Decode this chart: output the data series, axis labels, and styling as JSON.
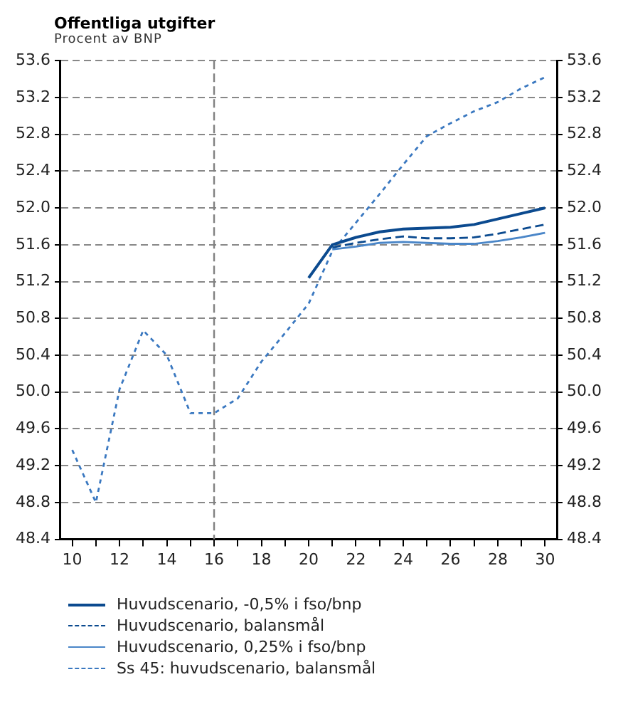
{
  "chart_data": {
    "type": "line",
    "title": "Offentliga utgifter",
    "ylabel": "Procent av BNP",
    "x": [
      10,
      11,
      12,
      13,
      14,
      15,
      16,
      17,
      18,
      19,
      20,
      21,
      22,
      23,
      24,
      25,
      26,
      27,
      28,
      29,
      30
    ],
    "series": [
      {
        "name": "Huvudscenario, -0,5% i fso/bnp",
        "color": "#0b4a8f",
        "line_style": "solid",
        "values": [
          null,
          null,
          null,
          null,
          null,
          null,
          null,
          null,
          null,
          null,
          51.24,
          51.6,
          51.68,
          51.74,
          51.77,
          51.78,
          51.79,
          51.82,
          51.88,
          51.94,
          52.0
        ]
      },
      {
        "name": "Huvudscenario, balansmål",
        "color": "#0b4a8f",
        "line_style": "dashed",
        "values": [
          null,
          null,
          null,
          null,
          null,
          null,
          null,
          null,
          null,
          null,
          null,
          51.57,
          51.62,
          51.66,
          51.69,
          51.67,
          51.67,
          51.68,
          51.72,
          51.77,
          51.82
        ]
      },
      {
        "name": "Huvudscenario, 0,25% i fso/bnp",
        "color": "#4a86c8",
        "line_style": "solid",
        "values": [
          null,
          null,
          null,
          null,
          null,
          null,
          null,
          null,
          null,
          null,
          null,
          51.55,
          51.58,
          51.62,
          51.63,
          51.62,
          51.61,
          51.61,
          51.64,
          51.68,
          51.73
        ]
      },
      {
        "name": "Ss 45: huvudscenario, balansmål",
        "color": "#3a78c0",
        "line_style": "dotted",
        "values": [
          49.37,
          48.8,
          50.03,
          50.67,
          50.4,
          49.77,
          49.77,
          49.93,
          50.33,
          50.64,
          50.96,
          51.53,
          51.84,
          52.15,
          52.47,
          52.78,
          52.92,
          53.05,
          53.15,
          53.3,
          53.42
        ]
      }
    ],
    "xlim": [
      9.5,
      30.5
    ],
    "xticks": [
      {
        "value": 10,
        "label": "10"
      },
      {
        "value": 11,
        "label": null
      },
      {
        "value": 12,
        "label": "12"
      },
      {
        "value": 13,
        "label": null
      },
      {
        "value": 14,
        "label": "14"
      },
      {
        "value": 15,
        "label": null
      },
      {
        "value": 16,
        "label": "16"
      },
      {
        "value": 17,
        "label": null
      },
      {
        "value": 18,
        "label": "18"
      },
      {
        "value": 19,
        "label": null
      },
      {
        "value": 20,
        "label": "20"
      },
      {
        "value": 21,
        "label": null
      },
      {
        "value": 22,
        "label": "22"
      },
      {
        "value": 23,
        "label": null
      },
      {
        "value": 24,
        "label": "24"
      },
      {
        "value": 25,
        "label": null
      },
      {
        "value": 26,
        "label": "26"
      },
      {
        "value": 27,
        "label": null
      },
      {
        "value": 28,
        "label": "28"
      },
      {
        "value": 29,
        "label": null
      },
      {
        "value": 30,
        "label": "30"
      }
    ],
    "ylim": [
      48.4,
      53.6
    ],
    "yticks": [
      48.4,
      48.8,
      49.2,
      49.6,
      {
        "value": 50,
        "label": "50.0"
      },
      50.4,
      50.8,
      51.2,
      51.6,
      {
        "value": 52,
        "label": "52.0"
      },
      52.4,
      52.8,
      53.2,
      53.6
    ],
    "y2lim": [
      48.4,
      53.6
    ],
    "y2ticks": [
      48.4,
      48.8,
      49.2,
      49.6,
      {
        "value": 50,
        "label": "50.0"
      },
      50.4,
      50.8,
      51.2,
      51.6,
      {
        "value": 52,
        "label": "52.0"
      },
      52.4,
      52.8,
      53.2,
      53.6
    ],
    "ref_lines": [
      {
        "axis": "x",
        "value": 16,
        "color": "#808080",
        "line_style": "dashed"
      }
    ],
    "grid": "y",
    "legend": "bottom",
    "marker": "none"
  }
}
